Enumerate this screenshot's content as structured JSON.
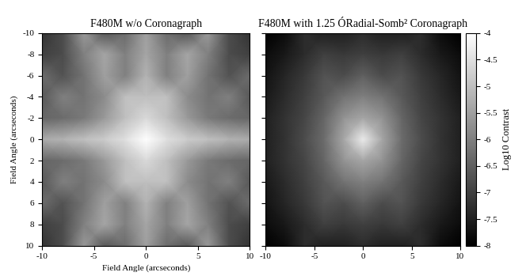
{
  "chart_data": [
    {
      "type": "heatmap",
      "title": "F480M w/o Coronagraph",
      "xlabel": "Field Angle (arcseconds)",
      "ylabel": "Field Angle (arcseconds)",
      "x": [
        -10,
        -8,
        -6,
        -4,
        -2,
        0,
        2,
        4,
        6,
        8,
        10
      ],
      "y": [
        -10,
        -8,
        -6,
        -4,
        -2,
        0,
        2,
        4,
        6,
        8,
        10
      ],
      "cells": [
        [
          -7.2,
          -6.8,
          -5.6,
          -6.6,
          -6.3,
          -5.5,
          -6.3,
          -6.6,
          -5.6,
          -6.8,
          -7.2
        ],
        [
          -7.0,
          -6.8,
          -6.0,
          -5.4,
          -6.0,
          -5.4,
          -6.0,
          -5.4,
          -6.0,
          -6.8,
          -7.0
        ],
        [
          -6.3,
          -6.7,
          -6.2,
          -5.5,
          -6.0,
          -5.2,
          -6.0,
          -5.5,
          -6.2,
          -6.7,
          -6.3
        ],
        [
          -6.6,
          -6.0,
          -6.2,
          -5.8,
          -5.0,
          -5.0,
          -5.0,
          -5.8,
          -6.2,
          -6.0,
          -6.6
        ],
        [
          -6.4,
          -6.3,
          -6.1,
          -5.6,
          -5.0,
          -4.6,
          -5.0,
          -5.6,
          -6.1,
          -6.3,
          -6.4
        ],
        [
          -5.3,
          -5.2,
          -5.0,
          -4.8,
          -4.5,
          -4.0,
          -4.5,
          -4.8,
          -5.0,
          -5.2,
          -5.3
        ],
        [
          -6.4,
          -6.3,
          -6.1,
          -5.6,
          -5.0,
          -4.6,
          -5.0,
          -5.6,
          -6.1,
          -6.3,
          -6.4
        ],
        [
          -6.6,
          -6.0,
          -6.2,
          -5.8,
          -5.0,
          -5.0,
          -5.0,
          -5.8,
          -6.2,
          -6.0,
          -6.6
        ],
        [
          -6.3,
          -6.7,
          -6.2,
          -5.5,
          -6.0,
          -5.2,
          -6.0,
          -5.5,
          -6.2,
          -6.7,
          -6.3
        ],
        [
          -7.0,
          -6.8,
          -6.0,
          -5.4,
          -6.0,
          -5.4,
          -6.0,
          -5.4,
          -6.0,
          -6.8,
          -7.0
        ],
        [
          -7.2,
          -6.8,
          -5.6,
          -6.6,
          -6.3,
          -5.5,
          -6.3,
          -6.6,
          -5.6,
          -6.8,
          -7.2
        ]
      ],
      "xlim": [
        -10,
        10
      ],
      "ylim": [
        10,
        -10
      ],
      "xticks": [
        -10,
        -5,
        0,
        5,
        10
      ],
      "yticks": [
        -10,
        -8,
        -6,
        -4,
        -2,
        0,
        2,
        4,
        6,
        8,
        10
      ]
    },
    {
      "type": "heatmap",
      "title": "F480M with 1.25 ÓRadial-Somb² Coronagraph",
      "x": [
        -10,
        -8,
        -6,
        -4,
        -2,
        0,
        2,
        4,
        6,
        8,
        10
      ],
      "y": [
        -10,
        -8,
        -6,
        -4,
        -2,
        0,
        2,
        4,
        6,
        8,
        10
      ],
      "cells": [
        [
          -8.0,
          -7.8,
          -7.3,
          -7.5,
          -7.5,
          -7.3,
          -7.5,
          -7.5,
          -7.3,
          -7.8,
          -8.0
        ],
        [
          -7.8,
          -7.6,
          -7.3,
          -7.0,
          -7.1,
          -7.0,
          -7.1,
          -7.0,
          -7.3,
          -7.6,
          -7.8
        ],
        [
          -7.7,
          -7.4,
          -7.1,
          -6.7,
          -6.8,
          -6.5,
          -6.8,
          -6.7,
          -7.1,
          -7.4,
          -7.7
        ],
        [
          -7.6,
          -7.3,
          -7.0,
          -6.6,
          -6.2,
          -6.0,
          -6.2,
          -6.6,
          -7.0,
          -7.3,
          -7.6
        ],
        [
          -7.5,
          -7.2,
          -6.9,
          -6.4,
          -5.7,
          -5.4,
          -5.7,
          -6.4,
          -6.9,
          -7.2,
          -7.5
        ],
        [
          -7.5,
          -7.2,
          -6.8,
          -6.3,
          -5.4,
          -4.3,
          -5.4,
          -6.3,
          -6.8,
          -7.2,
          -7.5
        ],
        [
          -7.5,
          -7.2,
          -6.9,
          -6.4,
          -5.7,
          -5.4,
          -5.7,
          -6.4,
          -6.9,
          -7.2,
          -7.5
        ],
        [
          -7.6,
          -7.3,
          -7.0,
          -6.6,
          -6.2,
          -6.0,
          -6.2,
          -6.6,
          -7.0,
          -7.3,
          -7.6
        ],
        [
          -7.7,
          -7.4,
          -7.1,
          -6.7,
          -6.8,
          -6.5,
          -6.8,
          -6.7,
          -7.1,
          -7.4,
          -7.7
        ],
        [
          -7.8,
          -7.6,
          -7.3,
          -7.0,
          -7.1,
          -7.0,
          -7.1,
          -7.0,
          -7.3,
          -7.6,
          -7.8
        ],
        [
          -8.0,
          -7.8,
          -7.3,
          -7.5,
          -7.5,
          -7.3,
          -7.5,
          -7.5,
          -7.3,
          -7.8,
          -8.0
        ]
      ],
      "xlim": [
        -10,
        10
      ],
      "ylim": [
        10,
        -10
      ],
      "xticks": [
        -10,
        -5,
        0,
        5,
        10
      ],
      "yticks": [
        -10,
        -8,
        -6,
        -4,
        -2,
        0,
        2,
        4,
        6,
        8,
        10
      ],
      "tick_labels": "x",
      "colorbar": {
        "label": "Log10 Contrast",
        "range": [
          -8,
          -4
        ],
        "ticks": [
          -4,
          -4.5,
          -5,
          -5.5,
          -6,
          -6.5,
          -7,
          -7.5,
          -8
        ]
      }
    }
  ]
}
